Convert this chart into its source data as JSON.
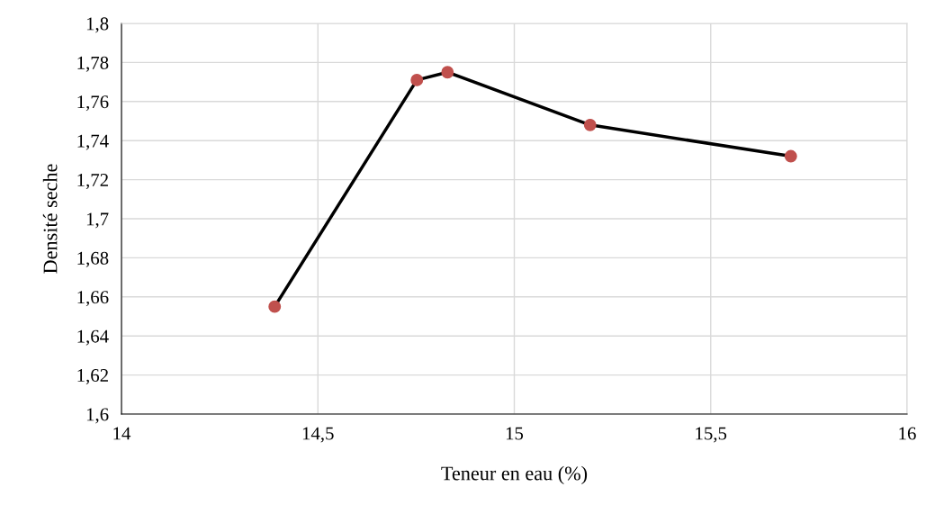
{
  "chart_data": {
    "type": "line",
    "xlabel": "Teneur en eau (%)",
    "ylabel": "Densité seche",
    "xlim": [
      14,
      16
    ],
    "xticks": [
      {
        "value": 14,
        "label": "14"
      },
      {
        "value": 14.5,
        "label": "14,5"
      },
      {
        "value": 15,
        "label": "15"
      },
      {
        "value": 15.5,
        "label": "15,5"
      },
      {
        "value": 16,
        "label": "16"
      }
    ],
    "ylim": [
      1.6,
      1.8
    ],
    "yticks": [
      {
        "value": 1.6,
        "label": "1,6"
      },
      {
        "value": 1.62,
        "label": "1,62"
      },
      {
        "value": 1.64,
        "label": "1,64"
      },
      {
        "value": 1.66,
        "label": "1,66"
      },
      {
        "value": 1.68,
        "label": "1,68"
      },
      {
        "value": 1.7,
        "label": "1,7"
      },
      {
        "value": 1.72,
        "label": "1,72"
      },
      {
        "value": 1.74,
        "label": "1,74"
      },
      {
        "value": 1.76,
        "label": "1,76"
      },
      {
        "value": 1.78,
        "label": "1,78"
      },
      {
        "value": 1.8,
        "label": "1,8"
      }
    ],
    "grid": true,
    "marker": "circle",
    "line_style": "solid",
    "series": [
      {
        "x": [
          14.39,
          14.752,
          14.83,
          15.193,
          15.704
        ],
        "values": [
          1.655,
          1.771,
          1.775,
          1.748,
          1.732
        ],
        "color": "#000000",
        "colors": [
          "#c0504d",
          "#c0504d",
          "#c0504d",
          "#c0504d",
          "#c0504d"
        ]
      }
    ]
  }
}
